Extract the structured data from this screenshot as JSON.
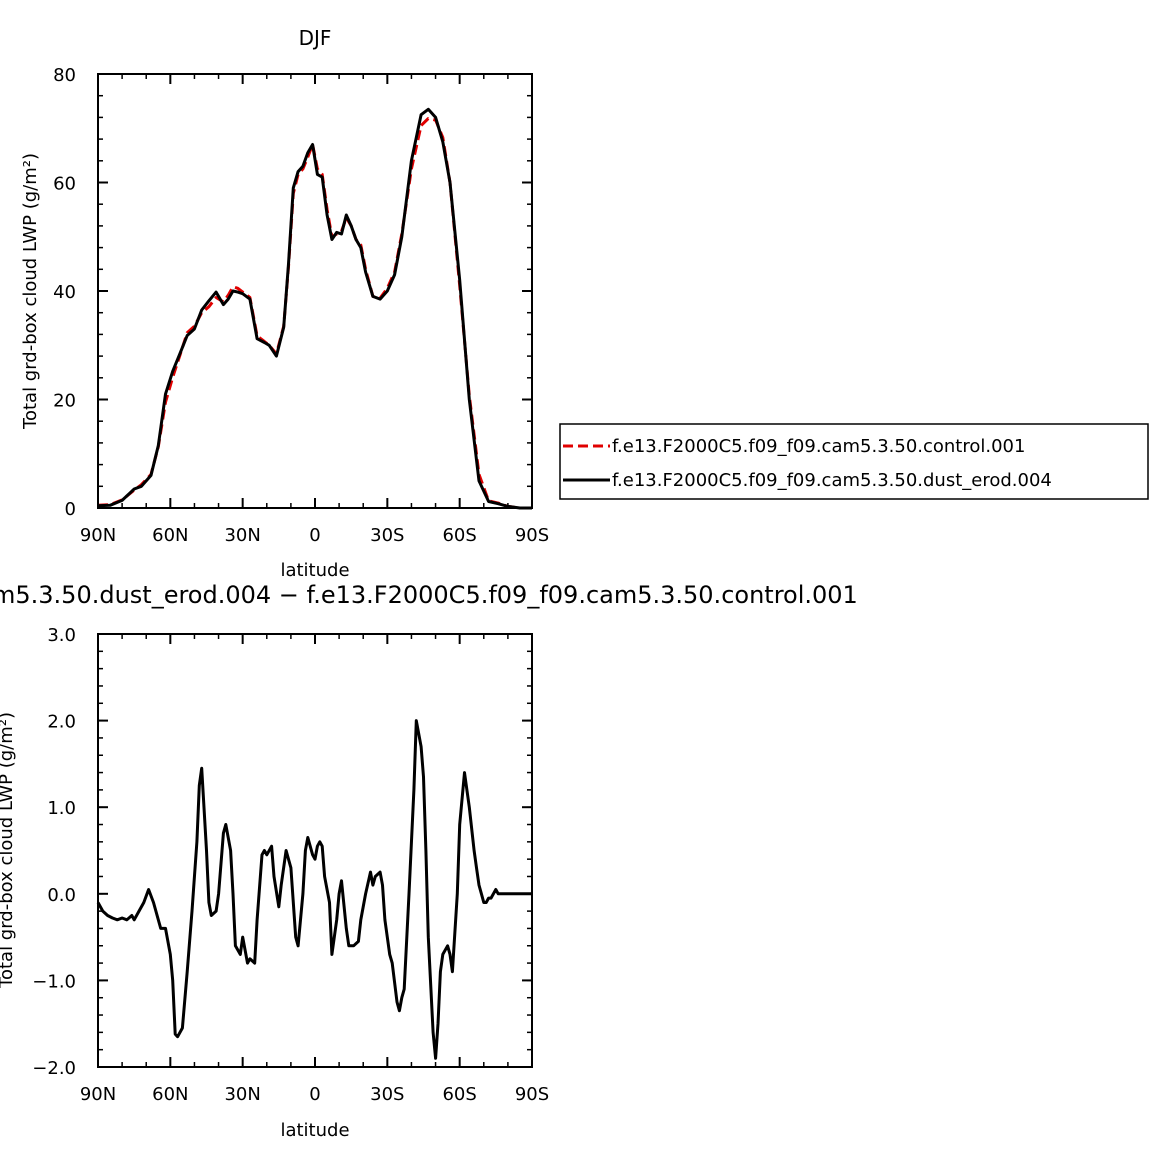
{
  "chart_data": [
    {
      "type": "line",
      "title": "DJF",
      "xlabel": "latitude",
      "ylabel": "Total grd-box cloud LWP (g/m²)",
      "x_tick_labels": [
        "90N",
        "60N",
        "30N",
        "0",
        "30S",
        "60S",
        "90S"
      ],
      "x_ticks": [
        90,
        60,
        30,
        0,
        -30,
        -60,
        -90
      ],
      "xlim": [
        90,
        -90
      ],
      "y_tick_labels": [
        "0",
        "20",
        "40",
        "60",
        "80"
      ],
      "y_ticks": [
        0,
        20,
        40,
        60,
        80
      ],
      "ylim": [
        0,
        80
      ],
      "legend": {
        "placement": "right",
        "entries": [
          "f.e13.F2000C5.f09_f09.cam5.3.50.control.001",
          "f.e13.F2000C5.f09_f09.cam5.3.50.dust_erod.004"
        ]
      },
      "series": [
        {
          "name": "f.e13.F2000C5.f09_f09.cam5.3.50.control.001",
          "color": "#e00000",
          "dash": "dashed",
          "x": [
            90,
            85,
            80,
            75,
            72,
            68,
            65,
            62,
            59,
            56,
            53,
            50,
            47,
            44,
            41,
            38,
            36,
            34,
            32,
            30,
            27,
            24,
            21,
            19,
            16,
            13,
            11,
            9,
            7,
            5,
            3,
            1,
            -1,
            -3,
            -5,
            -7,
            -9,
            -11,
            -13,
            -15,
            -17,
            -19,
            -21,
            -24,
            -27,
            -30,
            -33,
            -36,
            -40,
            -44,
            -47,
            -50,
            -53,
            -56,
            -60,
            -64,
            -68,
            -72,
            -76,
            -80,
            -85,
            -90
          ],
          "y": [
            0.5,
            0.6,
            1.5,
            3.3,
            4.3,
            6.2,
            11.3,
            19.5,
            24.1,
            28.2,
            32.3,
            33.5,
            36.0,
            37.1,
            38.8,
            38.0,
            39.2,
            40.8,
            40.5,
            39.8,
            38.8,
            31.7,
            30.7,
            30.0,
            28.4,
            33.5,
            44.5,
            58.0,
            61.5,
            62.5,
            64.7,
            67.0,
            62.5,
            61.5,
            55.0,
            50.0,
            50.5,
            51.0,
            53.5,
            52.0,
            49.5,
            48.5,
            44.0,
            39.0,
            38.7,
            40.5,
            43.5,
            50.5,
            62.5,
            70.5,
            71.8,
            71.5,
            68.3,
            60.0,
            41.0,
            20.7,
            6.2,
            1.3,
            0.9,
            0.3,
            0.0,
            0.0
          ]
        },
        {
          "name": "f.e13.F2000C5.f09_f09.cam5.3.50.dust_erod.004",
          "color": "#000000",
          "dash": "solid",
          "x": [
            90,
            85,
            80,
            75,
            72,
            68,
            65,
            62,
            59,
            56,
            53,
            50,
            47,
            44,
            41,
            38,
            36,
            34,
            32,
            30,
            27,
            24,
            21,
            19,
            16,
            13,
            11,
            9,
            7,
            5,
            3,
            1,
            -1,
            -3,
            -5,
            -7,
            -9,
            -11,
            -13,
            -15,
            -17,
            -19,
            -21,
            -24,
            -27,
            -30,
            -33,
            -36,
            -40,
            -44,
            -47,
            -50,
            -53,
            -56,
            -60,
            -64,
            -68,
            -72,
            -76,
            -80,
            -85,
            -90
          ],
          "y": [
            0.4,
            0.5,
            1.4,
            3.5,
            4.0,
            6.0,
            11.5,
            21.0,
            25.2,
            28.5,
            31.8,
            33.0,
            36.5,
            38.2,
            39.8,
            37.5,
            38.5,
            40.0,
            39.8,
            39.5,
            38.5,
            31.2,
            30.5,
            30.0,
            28.0,
            33.3,
            45.0,
            59.0,
            62.0,
            63.0,
            65.5,
            67.0,
            61.5,
            61.0,
            54.0,
            49.5,
            50.8,
            50.5,
            54.0,
            52.0,
            49.5,
            48.0,
            43.5,
            39.0,
            38.5,
            40.0,
            43.0,
            50.0,
            64.0,
            72.5,
            73.5,
            72.0,
            67.5,
            60.0,
            42.0,
            20.0,
            5.0,
            1.2,
            0.8,
            0.3,
            0.0,
            0.0
          ]
        }
      ]
    },
    {
      "type": "line",
      "title": "m5.3.50.dust_erod.004 − f.e13.F2000C5.f09_f09.cam5.3.50.control.001",
      "xlabel": "latitude",
      "ylabel": "Total grd-box cloud LWP (g/m²)",
      "x_tick_labels": [
        "90N",
        "60N",
        "30N",
        "0",
        "30S",
        "60S",
        "90S"
      ],
      "x_ticks": [
        90,
        60,
        30,
        0,
        -30,
        -60,
        -90
      ],
      "xlim": [
        90,
        -90
      ],
      "y_tick_labels": [
        "−2.0",
        "−1.0",
        "0.0",
        "1.0",
        "2.0",
        "3.0"
      ],
      "y_ticks": [
        -2,
        -1,
        0,
        1,
        2,
        3
      ],
      "ylim": [
        -2,
        3
      ],
      "series": [
        {
          "color": "#000000",
          "x": [
            90,
            88,
            86,
            84,
            82,
            80,
            78,
            76,
            75,
            73,
            71,
            69,
            67,
            66,
            64,
            62,
            60,
            59,
            58,
            57,
            55,
            53,
            51,
            49,
            48,
            47,
            45,
            44,
            43,
            41,
            40,
            38,
            37,
            35,
            34,
            33,
            31,
            30,
            29,
            28,
            27,
            25,
            24,
            22,
            21,
            20,
            18,
            17,
            15,
            14,
            12,
            10,
            8,
            7,
            5,
            4,
            3,
            1,
            0,
            -1,
            -2,
            -3,
            -4,
            -6,
            -7,
            -9,
            -10,
            -11,
            -13,
            -14,
            -16,
            -18,
            -19,
            -21,
            -23,
            -24,
            -25,
            -27,
            -28,
            -29,
            -31,
            -32,
            -34,
            -35,
            -36,
            -37,
            -39,
            -41,
            -42,
            -44,
            -45,
            -46,
            -47,
            -49,
            -50,
            -51,
            -52,
            -53,
            -55,
            -56,
            -57,
            -59,
            -60,
            -62,
            -63,
            -64,
            -66,
            -67,
            -68,
            -70,
            -71,
            -72,
            -73,
            -75,
            -76,
            -78,
            -79,
            -80,
            -82,
            -84,
            -86,
            -88,
            -90
          ],
          "y": [
            -0.1,
            -0.2,
            -0.25,
            -0.28,
            -0.3,
            -0.28,
            -0.3,
            -0.25,
            -0.3,
            -0.2,
            -0.1,
            0.05,
            -0.1,
            -0.2,
            -0.4,
            -0.4,
            -0.7,
            -1.0,
            -1.62,
            -1.65,
            -1.55,
            -0.9,
            -0.2,
            0.6,
            1.25,
            1.45,
            0.5,
            -0.1,
            -0.25,
            -0.2,
            0.0,
            0.7,
            0.8,
            0.5,
            0.0,
            -0.6,
            -0.7,
            -0.5,
            -0.65,
            -0.8,
            -0.75,
            -0.8,
            -0.3,
            0.45,
            0.5,
            0.45,
            0.55,
            0.2,
            -0.15,
            0.1,
            0.5,
            0.3,
            -0.5,
            -0.6,
            0.0,
            0.5,
            0.65,
            0.45,
            0.4,
            0.55,
            0.6,
            0.55,
            0.2,
            -0.1,
            -0.7,
            -0.3,
            0.0,
            0.15,
            -0.4,
            -0.6,
            -0.6,
            -0.55,
            -0.3,
            0.0,
            0.25,
            0.1,
            0.2,
            0.25,
            0.1,
            -0.3,
            -0.7,
            -0.8,
            -1.25,
            -1.35,
            -1.2,
            -1.1,
            0.0,
            1.2,
            2.0,
            1.7,
            1.35,
            0.5,
            -0.5,
            -1.6,
            -1.9,
            -1.5,
            -0.9,
            -0.7,
            -0.6,
            -0.7,
            -0.9,
            0.0,
            0.8,
            1.4,
            1.2,
            1.0,
            0.5,
            0.3,
            0.1,
            -0.1,
            -0.1,
            -0.05,
            -0.05,
            0.05,
            0.0,
            0.0,
            0.0,
            0.0,
            0.0,
            0.0,
            0.0,
            0.0,
            0.0
          ]
        }
      ]
    }
  ]
}
